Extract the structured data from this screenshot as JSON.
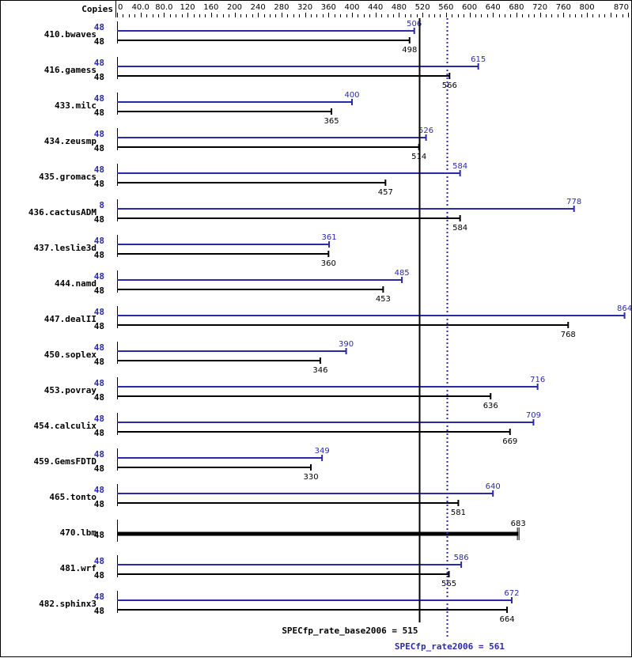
{
  "chart_data": {
    "type": "bar",
    "orientation": "horizontal",
    "title": "",
    "xlabel": "",
    "ylabel": "",
    "axis_header": "Copies",
    "xlim": [
      0,
      870
    ],
    "x_ticks": [
      "0",
      "40.0",
      "80.0",
      "120",
      "160",
      "200",
      "240",
      "280",
      "320",
      "360",
      "400",
      "440",
      "480",
      "520",
      "560",
      "600",
      "640",
      "680",
      "720",
      "760",
      "800",
      "870"
    ],
    "x_tick_values": [
      0,
      40,
      80,
      120,
      160,
      200,
      240,
      280,
      320,
      360,
      400,
      440,
      480,
      520,
      560,
      600,
      640,
      680,
      720,
      760,
      800,
      870
    ],
    "colors": {
      "peak": "#2b2ba8",
      "base": "#000000"
    },
    "categories": [
      "410.bwaves",
      "416.gamess",
      "433.milc",
      "434.zeusmp",
      "435.gromacs",
      "436.cactusADM",
      "437.leslie3d",
      "444.namd",
      "447.dealII",
      "450.soplex",
      "453.povray",
      "454.calculix",
      "459.GemsFDTD",
      "465.tonto",
      "470.lbm",
      "481.wrf",
      "482.sphinx3"
    ],
    "series": [
      {
        "name": "SPECfp_rate2006 (peak)",
        "color": "#2b2ba8",
        "copies": [
          "48",
          "48",
          "48",
          "48",
          "48",
          "8",
          "48",
          "48",
          "48",
          "48",
          "48",
          "48",
          "48",
          "48",
          null,
          "48",
          "48"
        ],
        "values": [
          506,
          615,
          400,
          526,
          584,
          778,
          361,
          485,
          864,
          390,
          716,
          709,
          349,
          640,
          null,
          586,
          672
        ],
        "labels": [
          "506",
          "615",
          "400",
          "526",
          "584",
          "778",
          "361",
          "485",
          "864",
          "390",
          "716",
          "709",
          "349",
          "640",
          "",
          "586",
          "672"
        ]
      },
      {
        "name": "SPECfp_rate_base2006 (base)",
        "color": "#000000",
        "copies": [
          "48",
          "48",
          "48",
          "48",
          "48",
          "48",
          "48",
          "48",
          "48",
          "48",
          "48",
          "48",
          "48",
          "48",
          "48",
          "48",
          "48"
        ],
        "values": [
          498,
          566,
          365,
          514,
          457,
          584,
          360,
          453,
          768,
          346,
          636,
          669,
          330,
          581,
          683,
          565,
          664
        ],
        "labels": [
          "498",
          "566",
          "365",
          "514",
          "457",
          "584",
          "360",
          "453",
          "768",
          "346",
          "636",
          "669",
          "330",
          "581",
          "683",
          "565",
          "664"
        ]
      }
    ],
    "reference_lines": [
      {
        "name": "SPECfp_rate_base2006",
        "value": 515,
        "label": "SPECfp_rate_base2006 = 515",
        "style": "solid",
        "color": "#000000"
      },
      {
        "name": "SPECfp_rate2006",
        "value": 561,
        "label": "SPECfp_rate2006 = 561",
        "style": "dotted",
        "color": "#2b2ba8"
      }
    ],
    "grid": false,
    "legend": "none"
  }
}
